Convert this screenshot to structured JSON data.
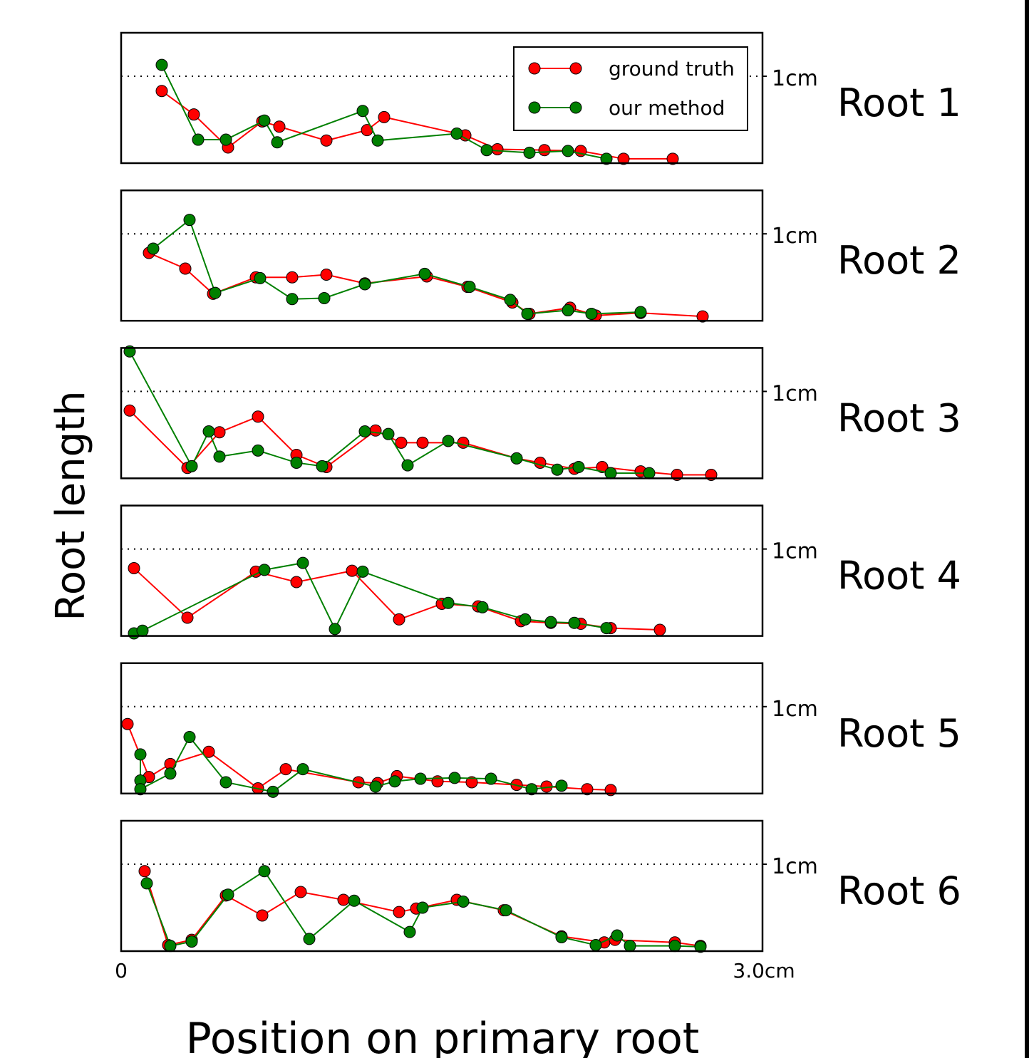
{
  "chart_data": {
    "type": "line",
    "ylabel": "Root length",
    "xlabel": "Position on primary root",
    "xlim": [
      0,
      3.0
    ],
    "ylim": [
      0,
      1.5
    ],
    "x_tick_labels": [
      "0",
      "3.0cm"
    ],
    "reference_line": {
      "y": 1.0,
      "label": "1cm",
      "style": "dotted"
    },
    "legend": {
      "placement": "top-right",
      "in_panel": 1,
      "entries": [
        {
          "name": "ground truth",
          "color": "#ff0000"
        },
        {
          "name": "our method",
          "color": "#008000"
        }
      ]
    },
    "panels": [
      {
        "label": "Root 1",
        "series": [
          {
            "name": "ground truth",
            "color": "#ff0000",
            "points": [
              [
                0.19,
                0.83
              ],
              [
                0.34,
                0.56
              ],
              [
                0.5,
                0.18
              ],
              [
                0.66,
                0.48
              ],
              [
                0.74,
                0.42
              ],
              [
                0.96,
                0.26
              ],
              [
                1.15,
                0.38
              ],
              [
                1.23,
                0.53
              ],
              [
                1.61,
                0.32
              ],
              [
                1.76,
                0.16
              ],
              [
                1.98,
                0.15
              ],
              [
                2.15,
                0.14
              ],
              [
                2.35,
                0.05
              ],
              [
                2.58,
                0.05
              ]
            ]
          },
          {
            "name": "our method",
            "color": "#008000",
            "points": [
              [
                0.19,
                1.13
              ],
              [
                0.36,
                0.27
              ],
              [
                0.49,
                0.27
              ],
              [
                0.67,
                0.49
              ],
              [
                0.73,
                0.24
              ],
              [
                1.13,
                0.6
              ],
              [
                1.2,
                0.26
              ],
              [
                1.57,
                0.34
              ],
              [
                1.71,
                0.15
              ],
              [
                1.91,
                0.12
              ],
              [
                2.09,
                0.14
              ],
              [
                2.27,
                0.05
              ]
            ]
          }
        ]
      },
      {
        "label": "Root 2",
        "series": [
          {
            "name": "ground truth",
            "color": "#ff0000",
            "points": [
              [
                0.13,
                0.78
              ],
              [
                0.3,
                0.6
              ],
              [
                0.43,
                0.31
              ],
              [
                0.63,
                0.5
              ],
              [
                0.8,
                0.5
              ],
              [
                0.96,
                0.53
              ],
              [
                1.14,
                0.43
              ],
              [
                1.43,
                0.51
              ],
              [
                1.62,
                0.39
              ],
              [
                1.83,
                0.21
              ],
              [
                1.91,
                0.08
              ],
              [
                2.1,
                0.15
              ],
              [
                2.22,
                0.06
              ],
              [
                2.43,
                0.09
              ],
              [
                2.72,
                0.05
              ]
            ]
          },
          {
            "name": "our method",
            "color": "#008000",
            "points": [
              [
                0.15,
                0.83
              ],
              [
                0.32,
                1.16
              ],
              [
                0.44,
                0.32
              ],
              [
                0.65,
                0.49
              ],
              [
                0.8,
                0.25
              ],
              [
                0.95,
                0.26
              ],
              [
                1.14,
                0.42
              ],
              [
                1.42,
                0.54
              ],
              [
                1.63,
                0.39
              ],
              [
                1.82,
                0.24
              ],
              [
                1.9,
                0.08
              ],
              [
                2.09,
                0.12
              ],
              [
                2.2,
                0.08
              ],
              [
                2.43,
                0.1
              ]
            ]
          }
        ]
      },
      {
        "label": "Root 3",
        "series": [
          {
            "name": "ground truth",
            "color": "#ff0000",
            "points": [
              [
                0.04,
                0.78
              ],
              [
                0.31,
                0.12
              ],
              [
                0.46,
                0.53
              ],
              [
                0.64,
                0.71
              ],
              [
                0.82,
                0.27
              ],
              [
                0.96,
                0.13
              ],
              [
                1.19,
                0.55
              ],
              [
                1.31,
                0.41
              ],
              [
                1.41,
                0.41
              ],
              [
                1.6,
                0.41
              ],
              [
                1.85,
                0.23
              ],
              [
                1.96,
                0.18
              ],
              [
                2.12,
                0.11
              ],
              [
                2.25,
                0.13
              ],
              [
                2.43,
                0.08
              ],
              [
                2.6,
                0.04
              ],
              [
                2.76,
                0.04
              ]
            ]
          },
          {
            "name": "our method",
            "color": "#008000",
            "points": [
              [
                0.04,
                1.46
              ],
              [
                0.33,
                0.14
              ],
              [
                0.41,
                0.54
              ],
              [
                0.46,
                0.25
              ],
              [
                0.64,
                0.32
              ],
              [
                0.82,
                0.18
              ],
              [
                0.94,
                0.14
              ],
              [
                1.14,
                0.54
              ],
              [
                1.25,
                0.51
              ],
              [
                1.34,
                0.15
              ],
              [
                1.53,
                0.43
              ],
              [
                1.85,
                0.23
              ],
              [
                2.04,
                0.1
              ],
              [
                2.14,
                0.13
              ],
              [
                2.29,
                0.06
              ],
              [
                2.47,
                0.06
              ]
            ]
          }
        ]
      },
      {
        "label": "Root 4",
        "series": [
          {
            "name": "ground truth",
            "color": "#ff0000",
            "points": [
              [
                0.06,
                0.78
              ],
              [
                0.31,
                0.21
              ],
              [
                0.63,
                0.74
              ],
              [
                0.82,
                0.62
              ],
              [
                1.08,
                0.75
              ],
              [
                1.3,
                0.19
              ],
              [
                1.5,
                0.37
              ],
              [
                1.67,
                0.34
              ],
              [
                1.87,
                0.17
              ],
              [
                2.01,
                0.15
              ],
              [
                2.15,
                0.14
              ],
              [
                2.29,
                0.09
              ],
              [
                2.52,
                0.07
              ]
            ]
          },
          {
            "name": "our method",
            "color": "#008000",
            "points": [
              [
                0.06,
                0.03
              ],
              [
                0.1,
                0.06
              ],
              [
                0.67,
                0.76
              ],
              [
                0.85,
                0.84
              ],
              [
                1.0,
                0.08
              ],
              [
                1.13,
                0.74
              ],
              [
                1.53,
                0.38
              ],
              [
                1.69,
                0.33
              ],
              [
                1.89,
                0.19
              ],
              [
                2.01,
                0.16
              ],
              [
                2.12,
                0.15
              ],
              [
                2.27,
                0.09
              ]
            ]
          }
        ]
      },
      {
        "label": "Root 5",
        "series": [
          {
            "name": "ground truth",
            "color": "#ff0000",
            "points": [
              [
                0.03,
                0.8
              ],
              [
                0.13,
                0.19
              ],
              [
                0.23,
                0.34
              ],
              [
                0.41,
                0.48
              ],
              [
                0.64,
                0.06
              ],
              [
                0.77,
                0.28
              ],
              [
                1.11,
                0.13
              ],
              [
                1.2,
                0.12
              ],
              [
                1.29,
                0.2
              ],
              [
                1.48,
                0.14
              ],
              [
                1.64,
                0.13
              ],
              [
                1.85,
                0.1
              ],
              [
                1.99,
                0.08
              ],
              [
                2.18,
                0.05
              ],
              [
                2.29,
                0.04
              ]
            ]
          },
          {
            "name": "our method",
            "color": "#008000",
            "points": [
              [
                0.09,
                0.45
              ],
              [
                0.09,
                0.15
              ],
              [
                0.09,
                0.05
              ],
              [
                0.23,
                0.23
              ],
              [
                0.32,
                0.65
              ],
              [
                0.49,
                0.13
              ],
              [
                0.71,
                0.02
              ],
              [
                0.85,
                0.28
              ],
              [
                1.19,
                0.08
              ],
              [
                1.28,
                0.14
              ],
              [
                1.4,
                0.17
              ],
              [
                1.56,
                0.18
              ],
              [
                1.73,
                0.17
              ],
              [
                1.92,
                0.05
              ],
              [
                2.06,
                0.09
              ]
            ]
          }
        ]
      },
      {
        "label": "Root 6",
        "series": [
          {
            "name": "ground truth",
            "color": "#ff0000",
            "points": [
              [
                0.11,
                0.92
              ],
              [
                0.22,
                0.07
              ],
              [
                0.33,
                0.13
              ],
              [
                0.49,
                0.64
              ],
              [
                0.66,
                0.41
              ],
              [
                0.84,
                0.68
              ],
              [
                1.04,
                0.59
              ],
              [
                1.3,
                0.45
              ],
              [
                1.38,
                0.49
              ],
              [
                1.57,
                0.59
              ],
              [
                1.79,
                0.47
              ],
              [
                2.06,
                0.17
              ],
              [
                2.26,
                0.1
              ],
              [
                2.31,
                0.13
              ],
              [
                2.59,
                0.1
              ],
              [
                2.71,
                0.06
              ]
            ]
          },
          {
            "name": "our method",
            "color": "#008000",
            "points": [
              [
                0.12,
                0.78
              ],
              [
                0.23,
                0.06
              ],
              [
                0.33,
                0.11
              ],
              [
                0.5,
                0.65
              ],
              [
                0.67,
                0.92
              ],
              [
                0.88,
                0.14
              ],
              [
                1.09,
                0.58
              ],
              [
                1.35,
                0.22
              ],
              [
                1.41,
                0.5
              ],
              [
                1.6,
                0.57
              ],
              [
                1.8,
                0.47
              ],
              [
                2.06,
                0.16
              ],
              [
                2.22,
                0.07
              ],
              [
                2.32,
                0.18
              ],
              [
                2.38,
                0.06
              ],
              [
                2.59,
                0.06
              ],
              [
                2.71,
                0.05
              ]
            ]
          }
        ]
      }
    ]
  }
}
